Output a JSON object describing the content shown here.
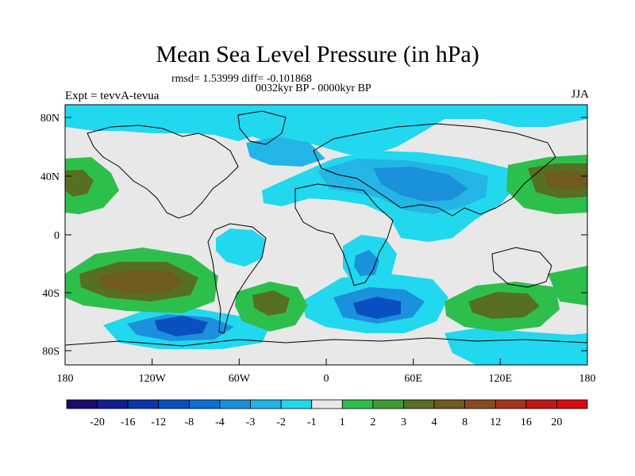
{
  "title": "Mean Sea Level Pressure (in hPa)",
  "stats": "rmsd= 1.53999 diff= -0.101868",
  "period": "0032kyr BP - 0000kyr BP",
  "expt": "Expt = tevvA-tevua",
  "season": "JJA",
  "lat_ticks": [
    "80N",
    "40N",
    "0",
    "40S",
    "80S"
  ],
  "lon_ticks": [
    "180",
    "120W",
    "60W",
    "0",
    "60E",
    "120E",
    "180"
  ],
  "colorbar": {
    "labels": [
      "-20",
      "-16",
      "-12",
      "-8",
      "-4",
      "-3",
      "-2",
      "-1",
      "1",
      "2",
      "3",
      "4",
      "8",
      "12",
      "16",
      "20"
    ],
    "colors": [
      "#1a0a6e",
      "#101e8f",
      "#0c34a8",
      "#0a4fbf",
      "#0f6fd0",
      "#1b91dc",
      "#23b5e6",
      "#22d8ee",
      "#e8e8e8",
      "#2dbf4c",
      "#3b9d33",
      "#566f22",
      "#6f5a1f",
      "#8a4a1f",
      "#a5341c",
      "#c0191b",
      "#d80d0d"
    ]
  },
  "colors": {
    "neutral": "#e8e8e8",
    "light_blue": "#22d8ee",
    "mid_blue": "#23b5e6",
    "blue": "#1b91dc",
    "dark_blue": "#0f6fd0",
    "deep_blue": "#0a4fbf",
    "green": "#2dbf4c",
    "olive": "#566f22",
    "brown": "#6f5a1f",
    "coast": "#000000"
  }
}
